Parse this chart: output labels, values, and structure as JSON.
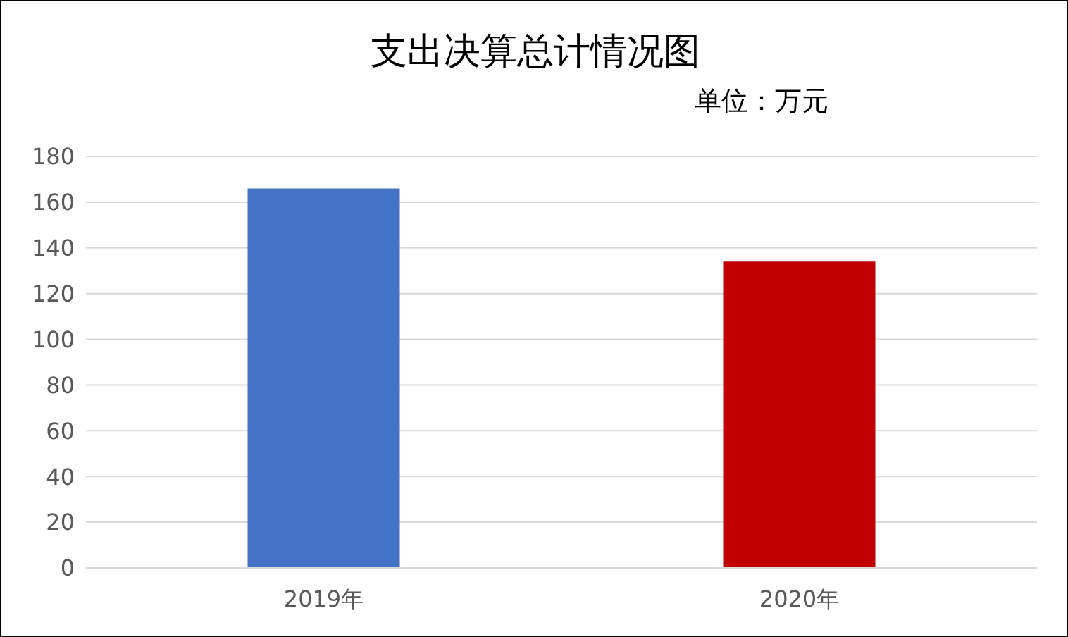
{
  "chart_data": {
    "type": "bar",
    "title": "支出决算总计情况图",
    "subtitle": "单位：万元",
    "categories": [
      "2019年",
      "2020年"
    ],
    "values": [
      166,
      134
    ],
    "colors": [
      "#4472c4",
      "#c00000"
    ],
    "ylim": [
      0,
      180
    ],
    "yticks": [
      0,
      20,
      40,
      60,
      80,
      100,
      120,
      140,
      160,
      180
    ],
    "grid": "y"
  }
}
